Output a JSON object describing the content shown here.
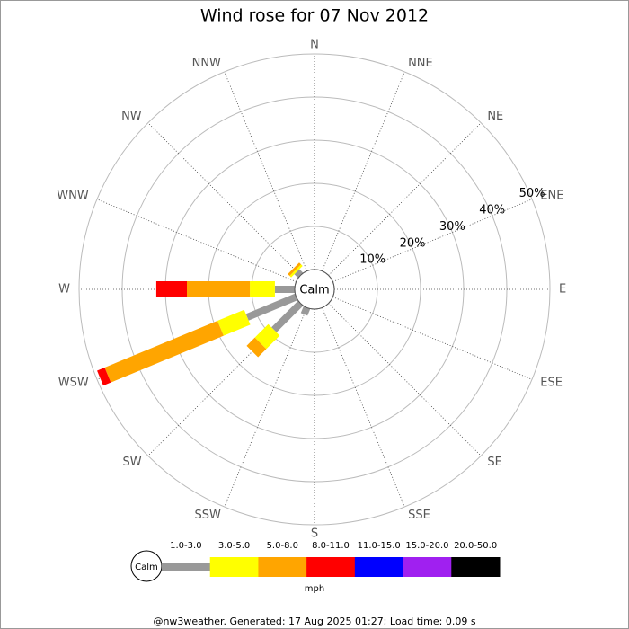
{
  "chart_data": {
    "type": "windrose",
    "title": "Wind rose for 07 Nov 2012",
    "directions": [
      "N",
      "NNE",
      "NE",
      "ENE",
      "E",
      "ESE",
      "SE",
      "SSE",
      "S",
      "SSW",
      "SW",
      "WSW",
      "W",
      "WNW",
      "NW",
      "NNW"
    ],
    "calm_label": "Calm",
    "rlim": [
      0,
      50
    ],
    "rticks": [
      {
        "value": 10,
        "label": "10%"
      },
      {
        "value": 20,
        "label": "20%"
      },
      {
        "value": 30,
        "label": "30%"
      },
      {
        "value": 40,
        "label": "40%"
      },
      {
        "value": 50,
        "label": "50%"
      }
    ],
    "series": [
      {
        "name": "1.0-3.0",
        "color": "#999999",
        "values": [
          0,
          0,
          0,
          0,
          0,
          0,
          0,
          0,
          0,
          1.7,
          8.7,
          12.3,
          4.6,
          0,
          1.2,
          0
        ]
      },
      {
        "name": "3.0-5.0",
        "color": "#ffff00",
        "values": [
          0,
          0,
          0,
          0,
          0,
          0,
          0,
          0,
          0,
          0,
          4.4,
          6.7,
          5.8,
          0,
          0.5,
          0
        ]
      },
      {
        "name": "5.0-8.0",
        "color": "#ffa500",
        "values": [
          0,
          0,
          0,
          0,
          0,
          0,
          0,
          0,
          0,
          0,
          2.7,
          28.3,
          14.6,
          0,
          0.6,
          0
        ]
      },
      {
        "name": "8.0-11.0",
        "color": "#ff0000",
        "values": [
          0,
          0,
          0,
          0,
          0,
          0,
          0,
          0,
          0,
          0,
          0,
          1.9,
          7.1,
          0,
          0,
          0
        ]
      },
      {
        "name": "11.0-15.0",
        "color": "#0000ff",
        "values": [
          0,
          0,
          0,
          0,
          0,
          0,
          0,
          0,
          0,
          0,
          0,
          0,
          0,
          0,
          0,
          0
        ]
      },
      {
        "name": "15.0-20.0",
        "color": "#a020f0",
        "values": [
          0,
          0,
          0,
          0,
          0,
          0,
          0,
          0,
          0,
          0,
          0,
          0,
          0,
          0,
          0,
          0
        ]
      },
      {
        "name": "20.0-50.0",
        "color": "#000000",
        "values": [
          0,
          0,
          0,
          0,
          0,
          0,
          0,
          0,
          0,
          0,
          0,
          0,
          0,
          0,
          0,
          0
        ]
      }
    ],
    "legend_unit": "mph",
    "footer": "@nw3weather. Generated: 17 Aug 2025 01:27; Load time: 0.09 s"
  }
}
